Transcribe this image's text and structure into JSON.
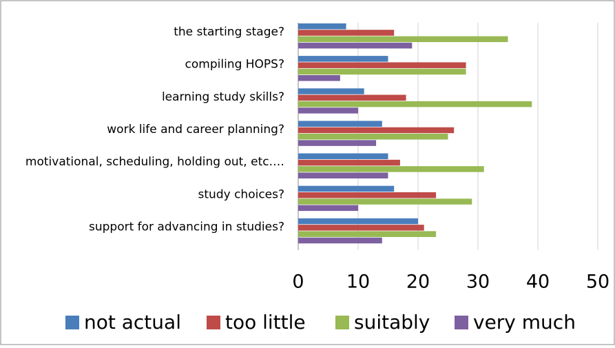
{
  "chart_data": {
    "type": "barh",
    "categories": [
      "the starting stage?",
      "compiling HOPS?",
      "learning study skills?",
      "work life and career planning?",
      "motivational, scheduling, holding out, etc.…",
      "study choices?",
      "support for advancing in studies?"
    ],
    "series": [
      {
        "name": "not actual",
        "color": "#4a7ebb",
        "values": [
          8,
          15,
          11,
          14,
          15,
          16,
          20
        ]
      },
      {
        "name": "too little",
        "color": "#be4b48",
        "values": [
          16,
          28,
          18,
          26,
          17,
          23,
          21
        ]
      },
      {
        "name": "suitably",
        "color": "#98b954",
        "values": [
          35,
          28,
          39,
          25,
          31,
          29,
          23
        ]
      },
      {
        "name": "very much",
        "color": "#7d60a0",
        "values": [
          19,
          7,
          10,
          13,
          15,
          10,
          14
        ]
      }
    ],
    "xlim": [
      0,
      50
    ],
    "xticks": [
      0,
      10,
      20,
      30,
      40,
      50
    ],
    "grid": true,
    "legend": "bottom"
  }
}
